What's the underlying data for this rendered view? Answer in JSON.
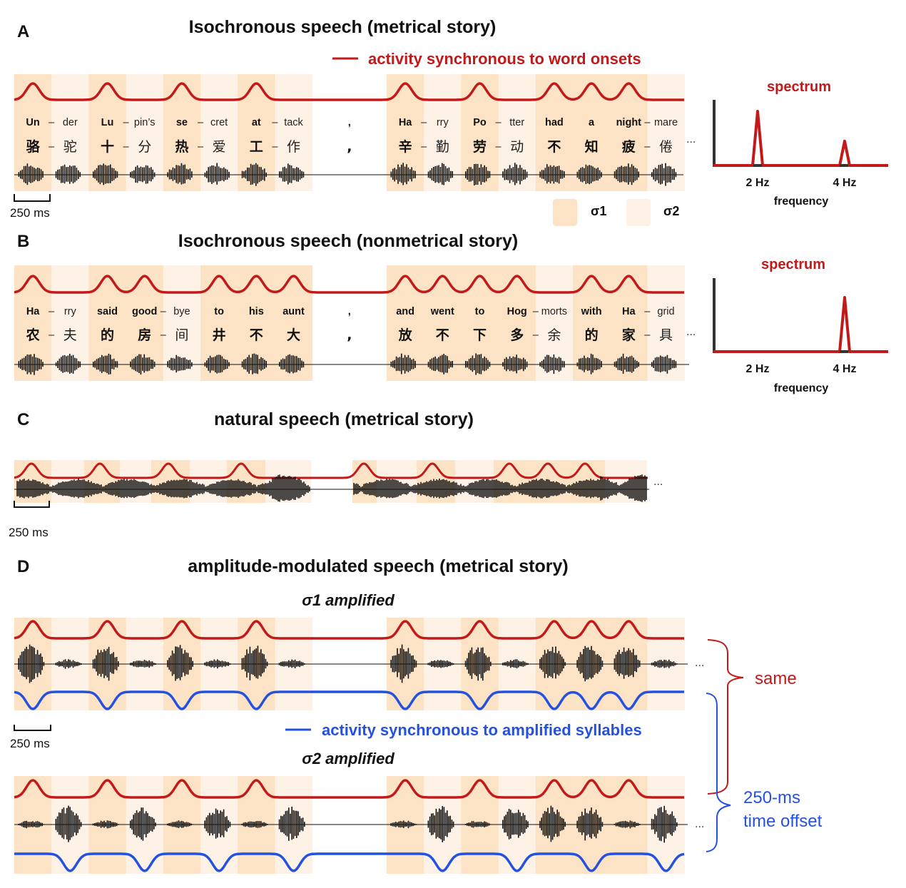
{
  "panels": {
    "A": {
      "letter": "A",
      "title": "Isochronous speech (metrical story)",
      "syllables": [
        [
          "Un",
          "der"
        ],
        [
          "Lu",
          "pin’s"
        ],
        [
          "se",
          "cret"
        ],
        [
          "at",
          "tack"
        ],
        [
          ","
        ],
        [
          "Ha",
          "rry"
        ],
        [
          "Po",
          "tter"
        ],
        [
          "had"
        ],
        [
          "a"
        ],
        [
          "night",
          "mare"
        ]
      ],
      "chinese": [
        [
          "骆",
          "驼"
        ],
        [
          "十",
          "分"
        ],
        [
          "热",
          "爱"
        ],
        [
          "工",
          "作"
        ],
        [
          ","
        ],
        [
          "辛",
          "勤"
        ],
        [
          "劳",
          "动"
        ],
        [
          "不"
        ],
        [
          "知"
        ],
        [
          "疲",
          "倦"
        ]
      ]
    },
    "B": {
      "letter": "B",
      "title": "Isochronous speech (nonmetrical story)",
      "syllables": [
        [
          "Ha",
          "rry"
        ],
        [
          "said"
        ],
        [
          "good",
          "bye"
        ],
        [
          "to"
        ],
        [
          "his"
        ],
        [
          "aunt"
        ],
        [
          ","
        ],
        [
          "and"
        ],
        [
          "went"
        ],
        [
          "to"
        ],
        [
          "Hog",
          "morts"
        ],
        [
          "with"
        ],
        [
          "Ha",
          "grid"
        ]
      ],
      "chinese": [
        [
          "农",
          "夫"
        ],
        [
          "的"
        ],
        [
          "房",
          "间"
        ],
        [
          "井"
        ],
        [
          "不"
        ],
        [
          "大"
        ],
        [
          ","
        ],
        [
          "放"
        ],
        [
          "不"
        ],
        [
          "下"
        ],
        [
          "多",
          "余"
        ],
        [
          "的"
        ],
        [
          "家",
          "具"
        ]
      ]
    },
    "C": {
      "letter": "C",
      "title": "natural speech (metrical story)"
    },
    "D": {
      "letter": "D",
      "title": "amplitude-modulated speech (metrical story)",
      "sub1": "σ1 amplified",
      "sub2": "σ2 amplified"
    }
  },
  "legend": {
    "red_label": "activity synchronous to word onsets",
    "blue_label": "activity synchronous to amplified syllables",
    "sigma1": "σ1",
    "sigma2": "σ2"
  },
  "scale_bar": "250 ms",
  "ellipsis": "...",
  "spectrum": {
    "title": "spectrum",
    "xlabel": "frequency",
    "ticks": [
      "2 Hz",
      "4 Hz"
    ],
    "A_peaks": [
      {
        "freq": "2 Hz",
        "rel_height": 1.0
      },
      {
        "freq": "4 Hz",
        "rel_height": 0.45
      }
    ],
    "B_peaks": [
      {
        "freq": "4 Hz",
        "rel_height": 1.0
      }
    ]
  },
  "brackets": {
    "same": "same",
    "offset_line1": "250-ms",
    "offset_line2": "time offset"
  },
  "colors": {
    "red": "#c21a1a",
    "blue": "#2451e0",
    "sigma1_bg": "#fde3c5",
    "sigma2_bg": "#fef2e6",
    "ink": "#111111"
  }
}
